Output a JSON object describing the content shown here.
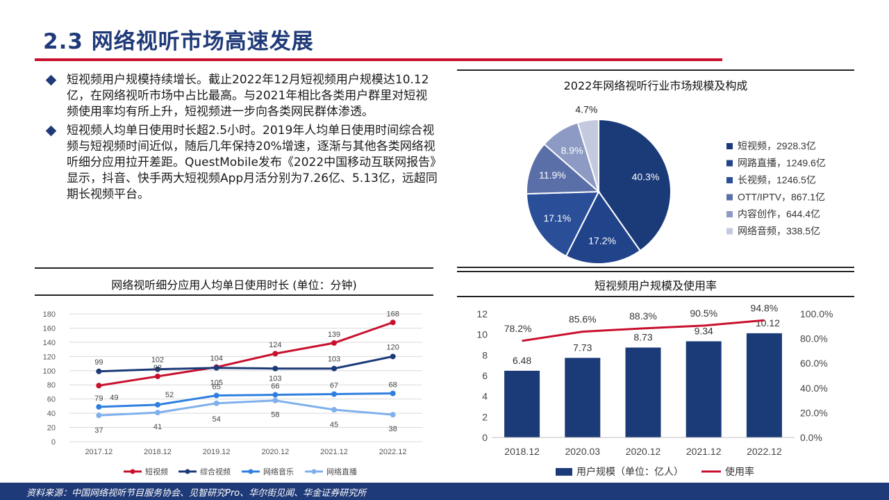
{
  "header": {
    "title": "2.3 网络视听市场高速发展"
  },
  "bullets": [
    "短视频用户规模持续增长。截止2022年12月短视频用户规模达10.12亿，在网络视听市场中占比最高。与2021年相比各类用户群里对短视频使用率均有所上升，短视频进一步向各类网民群体渗透。",
    "短视频人均单日使用时长超2.5小时。2019年人均单日使用时间综合视频与短视频时间近似，随后几年保持20%增速，逐渐与其他各类网络视听细分应用拉开差距。QuestMobile发布《2022中国移动互联网报告》显示，抖音、快手两大短视频App月活分别为7.26亿、5.13亿，远超同期长视频平台。"
  ],
  "footer": {
    "source": "资料来源：中国网络视听节目服务协会、见智研究Pro、华尔街见闻、华金证券研究所"
  },
  "colors": {
    "brand": "#1f3a78",
    "accent": "#c8102e"
  },
  "chart_data": [
    {
      "type": "pie",
      "title": "2022年网络视听行业市场规模及构成",
      "slices": [
        {
          "label": "短视频，2928.3亿",
          "value": 40.3,
          "pct_label": "40.3%",
          "color": "#1b3a78"
        },
        {
          "label": "网路直播，1249.6亿",
          "value": 17.2,
          "pct_label": "17.2%",
          "color": "#21438a"
        },
        {
          "label": "长视频，1246.5亿",
          "value": 17.1,
          "pct_label": "17.1%",
          "color": "#2a4f98"
        },
        {
          "label": "OTT/IPTV，867.1亿",
          "value": 11.9,
          "pct_label": "11.9%",
          "color": "#5a6fa8"
        },
        {
          "label": "内容创作，644.4亿",
          "value": 8.9,
          "pct_label": "8.9%",
          "color": "#8d9bc4"
        },
        {
          "label": "网络音频，338.5亿",
          "value": 4.7,
          "pct_label": "4.7%",
          "color": "#c4cade"
        }
      ],
      "legend_position": "right"
    },
    {
      "type": "line",
      "title": "网络视听细分应用人均单日使用时长 (单位：分钟)",
      "categories": [
        "2017.12",
        "2018.12",
        "2019.12",
        "2020.12",
        "2021.12",
        "2022.12"
      ],
      "ylim": [
        0,
        180
      ],
      "yticks": [
        "0",
        "20",
        "40",
        "60",
        "80",
        "100",
        "120",
        "140",
        "160",
        "180"
      ],
      "grid": true,
      "legend_position": "bottom",
      "series": [
        {
          "name": "短视频",
          "values": [
            79,
            92,
            105,
            124,
            139,
            168
          ],
          "labels": [
            "79",
            "92",
            "105",
            "124",
            "139",
            "168"
          ],
          "color": "#c8102e"
        },
        {
          "name": "综合视频",
          "values": [
            99,
            102,
            104,
            103,
            103,
            120
          ],
          "labels": [
            "99",
            "102",
            "104",
            "103",
            "103",
            "120"
          ],
          "color": "#1b3a78"
        },
        {
          "name": "网络音乐",
          "values": [
            49,
            52,
            65,
            66,
            67,
            68
          ],
          "labels": [
            "49",
            "52",
            "65",
            "66",
            "67",
            "68"
          ],
          "color": "#2e7fe0"
        },
        {
          "name": "网络直播",
          "values": [
            37,
            41,
            54,
            58,
            45,
            38
          ],
          "labels": [
            "37",
            "41",
            "54",
            "58",
            "45",
            "38"
          ],
          "color": "#7fb0ec"
        }
      ]
    },
    {
      "type": "bar",
      "title": "短视频用户规模及使用率",
      "categories": [
        "2018.12",
        "2020.03",
        "2020.12",
        "2021.12",
        "2022.12"
      ],
      "ylim": [
        0,
        12
      ],
      "yticks": [
        "0",
        "2",
        "4",
        "6",
        "8",
        "10",
        "12"
      ],
      "y2lim": [
        0,
        100
      ],
      "y2ticks": [
        "0.0%",
        "20.0%",
        "40.0%",
        "60.0%",
        "80.0%",
        "100.0%"
      ],
      "legend_position": "bottom",
      "series": [
        {
          "name": "用户规模（单位：亿人）",
          "type": "bar",
          "values": [
            6.48,
            7.73,
            8.73,
            9.34,
            10.12
          ],
          "labels": [
            "6.48",
            "7.73",
            "8.73",
            "9.34",
            "10.12"
          ],
          "color": "#1b3a78"
        },
        {
          "name": "使用率",
          "type": "line",
          "axis": "right",
          "values": [
            78.2,
            85.6,
            88.3,
            90.5,
            94.8
          ],
          "labels": [
            "78.2%",
            "85.6%",
            "88.3%",
            "90.5%",
            "94.8%"
          ],
          "color": "#c8102e"
        }
      ]
    }
  ]
}
